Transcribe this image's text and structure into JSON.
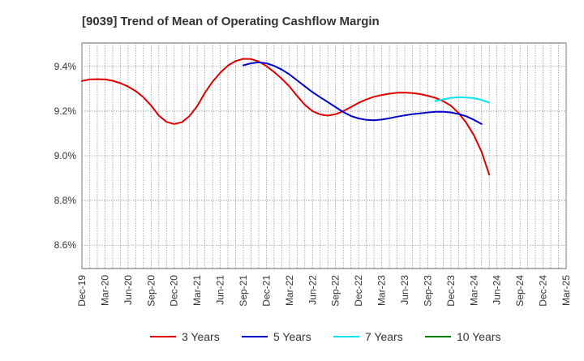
{
  "chart_data": {
    "type": "line",
    "title": "[9039]  Trend of Mean of Operating Cashflow Margin",
    "xlabel": "",
    "ylabel": "",
    "x_ticks": [
      "Dec-19",
      "Mar-20",
      "Jun-20",
      "Sep-20",
      "Dec-20",
      "Mar-21",
      "Jun-21",
      "Sep-21",
      "Dec-21",
      "Mar-22",
      "Jun-22",
      "Sep-22",
      "Dec-22",
      "Mar-23",
      "Jun-23",
      "Sep-23",
      "Dec-23",
      "Mar-24",
      "Jun-24",
      "Sep-24",
      "Dec-24",
      "Mar-25"
    ],
    "y_ticks": [
      "8.6%",
      "8.8%",
      "9.0%",
      "9.2%",
      "9.4%"
    ],
    "y_tick_values": [
      8.6,
      8.8,
      9.0,
      9.2,
      9.4
    ],
    "ylim": [
      8.495,
      9.505
    ],
    "grid": true,
    "legend_position": "bottom",
    "series": [
      {
        "name": "3 Years",
        "color": "#dd0000",
        "start_index": 0,
        "values": [
          9.335,
          9.342,
          9.343,
          9.342,
          9.336,
          9.325,
          9.31,
          9.29,
          9.262,
          9.225,
          9.18,
          9.152,
          9.142,
          9.15,
          9.178,
          9.222,
          9.282,
          9.332,
          9.372,
          9.404,
          9.424,
          9.434,
          9.433,
          9.422,
          9.402,
          9.375,
          9.345,
          9.31,
          9.268,
          9.228,
          9.2,
          9.185,
          9.18,
          9.186,
          9.2,
          9.218,
          9.237,
          9.252,
          9.264,
          9.272,
          9.278,
          9.282,
          9.283,
          9.281,
          9.276,
          9.269,
          9.259,
          9.245,
          9.224,
          9.192,
          9.148,
          9.092,
          9.017,
          8.915
        ]
      },
      {
        "name": "5 Years",
        "color": "#0000cc",
        "start_index": 21,
        "values": [
          9.405,
          9.414,
          9.418,
          9.414,
          9.403,
          9.386,
          9.364,
          9.338,
          9.311,
          9.285,
          9.262,
          9.24,
          9.218,
          9.196,
          9.178,
          9.167,
          9.161,
          9.159,
          9.162,
          9.168,
          9.175,
          9.181,
          9.186,
          9.19,
          9.194,
          9.197,
          9.197,
          9.194,
          9.187,
          9.177,
          9.161,
          9.142
        ]
      },
      {
        "name": "7 Years",
        "color": "#00e5ee",
        "start_index": 46,
        "values": [
          9.245,
          9.253,
          9.259,
          9.262,
          9.261,
          9.258,
          9.25,
          9.238
        ]
      },
      {
        "name": "10 Years",
        "color": "#008000",
        "start_index": 0,
        "values": []
      }
    ]
  }
}
